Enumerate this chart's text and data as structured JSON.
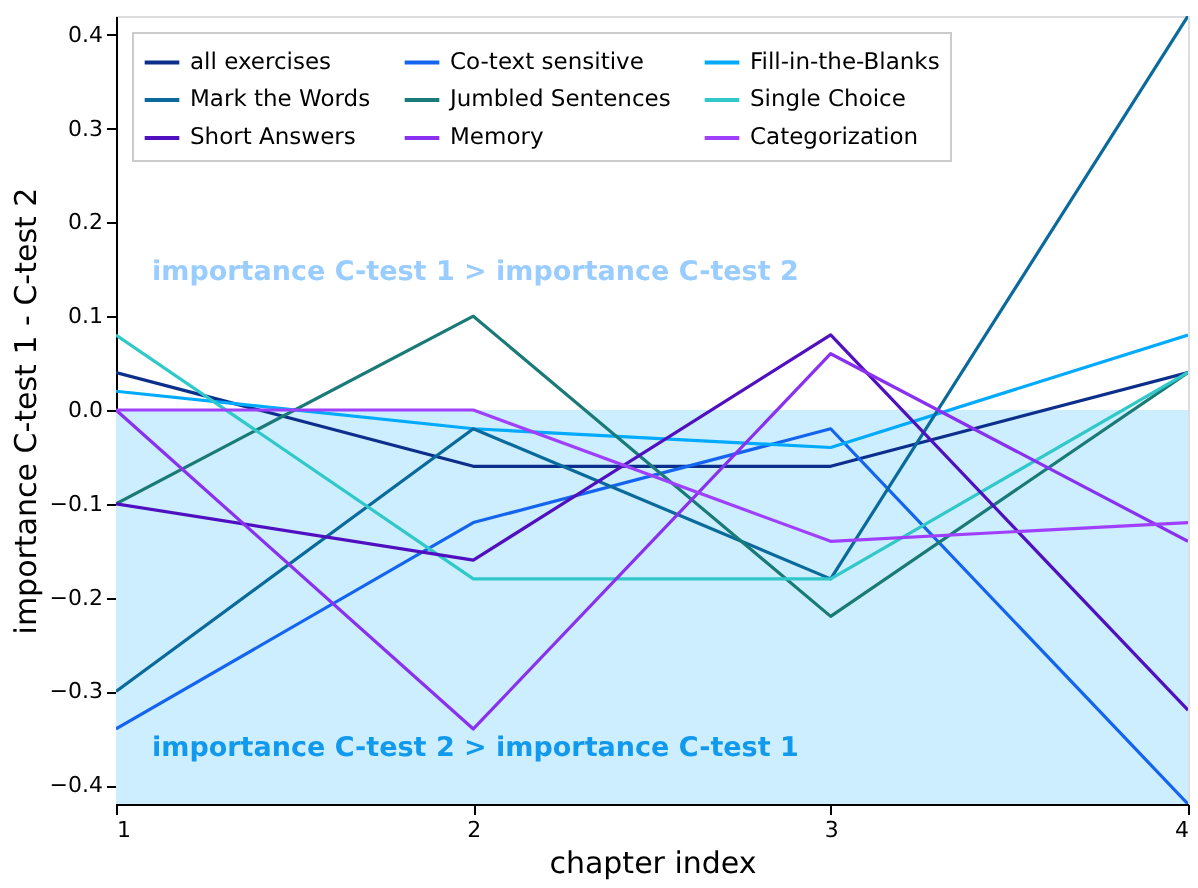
{
  "chart_data": {
    "type": "line",
    "xlabel": "chapter index",
    "ylabel": "importance C-test 1 - C-test 2",
    "x": [
      1,
      2,
      3,
      4
    ],
    "xlim": [
      1,
      4
    ],
    "xticks": [
      1,
      2,
      3,
      4
    ],
    "ylim": [
      -0.42,
      0.42
    ],
    "yticks": [
      -0.4,
      -0.3,
      -0.2,
      -0.1,
      {
        "value": 0,
        "label": "0.0"
      },
      0.1,
      0.2,
      0.3,
      0.4
    ],
    "grid": false,
    "legend": "top",
    "marker": "none",
    "line_style": "solid",
    "series": [
      {
        "name": "all exercises",
        "color": "#0d2f8c",
        "values": [
          0.04,
          -0.06,
          -0.06,
          0.04
        ]
      },
      {
        "name": "Co-text sensitive",
        "color": "#1464f0",
        "values": [
          -0.34,
          -0.12,
          -0.02,
          -0.42
        ]
      },
      {
        "name": "Fill-in-the-Blanks",
        "color": "#00aaff",
        "values": [
          0.02,
          -0.02,
          -0.04,
          0.08
        ]
      },
      {
        "name": "Mark the Words",
        "color": "#0a6a9c",
        "values": [
          -0.3,
          -0.02,
          -0.18,
          0.42
        ]
      },
      {
        "name": "Jumbled Sentences",
        "color": "#1a7a78",
        "values": [
          -0.1,
          0.1,
          -0.22,
          0.04
        ]
      },
      {
        "name": "Single Choice",
        "color": "#30c8c8",
        "values": [
          0.08,
          -0.18,
          -0.18,
          0.04
        ]
      },
      {
        "name": "Short Answers",
        "color": "#5010c0",
        "values": [
          -0.1,
          -0.16,
          0.08,
          -0.32
        ]
      },
      {
        "name": "Memory",
        "color": "#8a30f0",
        "values": [
          0.0,
          -0.34,
          0.06,
          -0.14
        ]
      },
      {
        "name": "Categorization",
        "color": "#a040ff",
        "values": [
          0.0,
          0.0,
          -0.14,
          -0.12
        ]
      }
    ],
    "bands": [
      {
        "axis": "y",
        "from": -0.42,
        "to": 0.0,
        "color": "#cceeff"
      }
    ],
    "annotations": [
      "importance C-test 1 > importance C-test 2",
      "importance C-test 2 > importance C-test 1"
    ]
  }
}
